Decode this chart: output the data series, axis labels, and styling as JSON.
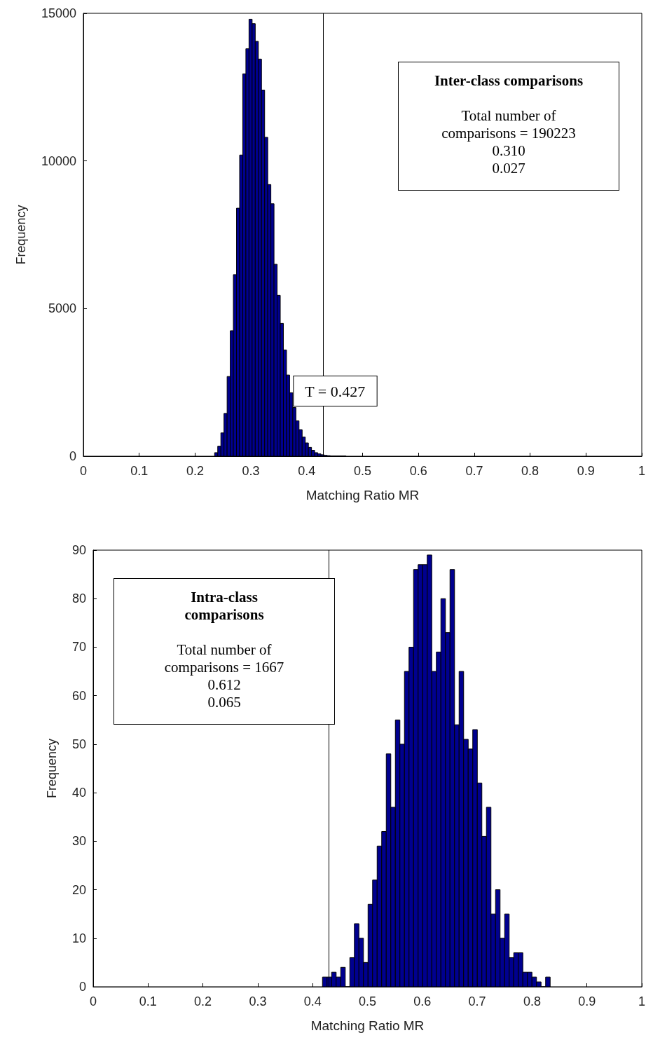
{
  "chart_data": [
    {
      "type": "histogram",
      "xlabel": "Matching Ratio MR",
      "ylabel": "Frequency",
      "color": "#00008f",
      "bins": [
        0.235,
        0.2406,
        0.2462,
        0.2518,
        0.2574,
        0.263,
        0.2686,
        0.2742,
        0.2798,
        0.2854,
        0.291,
        0.2966,
        0.3022,
        0.3078,
        0.3134,
        0.319,
        0.3246,
        0.3302,
        0.3358,
        0.3414,
        0.347,
        0.3526,
        0.3582,
        0.3638,
        0.3694,
        0.375,
        0.3806,
        0.3862,
        0.3918,
        0.3974,
        0.403,
        0.4086,
        0.4142,
        0.4198,
        0.4254,
        0.431,
        0.4366,
        0.4422,
        0.4478,
        0.4534,
        0.459,
        0.4646,
        0.4702
      ],
      "values": [
        120,
        340,
        790,
        1450,
        2700,
        4250,
        6150,
        8400,
        10200,
        12950,
        13800,
        14800,
        14650,
        14050,
        13450,
        12400,
        10800,
        9200,
        8550,
        6500,
        5450,
        4500,
        3600,
        2750,
        2150,
        1650,
        1200,
        900,
        650,
        450,
        300,
        200,
        120,
        80,
        50,
        30,
        20,
        10,
        10,
        10,
        10,
        10
      ],
      "xlim": [
        0,
        1
      ],
      "xticks": [
        0,
        0.1,
        0.2,
        0.3,
        0.4,
        0.5,
        0.6,
        0.7,
        0.8,
        0.9,
        1
      ],
      "ylim": [
        0,
        15000
      ],
      "yticks": [
        0,
        5000,
        10000,
        15000
      ],
      "ref_lines": [
        {
          "axis": "x",
          "value": 0.427,
          "label": "T = 0.427"
        }
      ],
      "annotations": [
        "Inter-class comparisons",
        "Total number of comparisons = 190223",
        "0.310",
        "0.027"
      ]
    },
    {
      "type": "histogram",
      "xlabel": "Matching Ratio MR",
      "ylabel": "Frequency",
      "color": "#00008f",
      "bins": [
        0.418,
        0.4263,
        0.4346,
        0.4429,
        0.4512,
        0.4595,
        0.4678,
        0.4761,
        0.4844,
        0.4927,
        0.501,
        0.5093,
        0.5176,
        0.5259,
        0.5342,
        0.5425,
        0.5508,
        0.5591,
        0.5674,
        0.5757,
        0.584,
        0.5923,
        0.6006,
        0.6089,
        0.6172,
        0.6255,
        0.6338,
        0.6421,
        0.6504,
        0.6587,
        0.667,
        0.6753,
        0.6836,
        0.6919,
        0.7002,
        0.7085,
        0.7168,
        0.7251,
        0.7334,
        0.7417,
        0.75,
        0.7583,
        0.7666,
        0.7749,
        0.7832,
        0.7915,
        0.7998,
        0.8081,
        0.8164,
        0.8247,
        0.833
      ],
      "values": [
        2,
        2,
        3,
        2,
        4,
        0,
        6,
        13,
        10,
        5,
        17,
        22,
        29,
        32,
        48,
        37,
        55,
        50,
        65,
        70,
        86,
        87,
        87,
        89,
        65,
        69,
        80,
        73,
        86,
        54,
        65,
        51,
        49,
        53,
        42,
        31,
        37,
        15,
        20,
        10,
        15,
        6,
        7,
        7,
        3,
        3,
        2,
        1,
        0,
        2
      ],
      "xlim": [
        0,
        1
      ],
      "xticks": [
        0,
        0.1,
        0.2,
        0.3,
        0.4,
        0.5,
        0.6,
        0.7,
        0.8,
        0.9,
        1
      ],
      "ylim": [
        0,
        90
      ],
      "yticks": [
        0,
        10,
        20,
        30,
        40,
        50,
        60,
        70,
        80,
        90
      ],
      "ref_lines": [
        {
          "axis": "x",
          "value": 0.427
        }
      ],
      "annotations": [
        "Intra-class comparisons",
        "Total number of comparisons = 1667",
        "0.612",
        "0.065"
      ]
    }
  ]
}
